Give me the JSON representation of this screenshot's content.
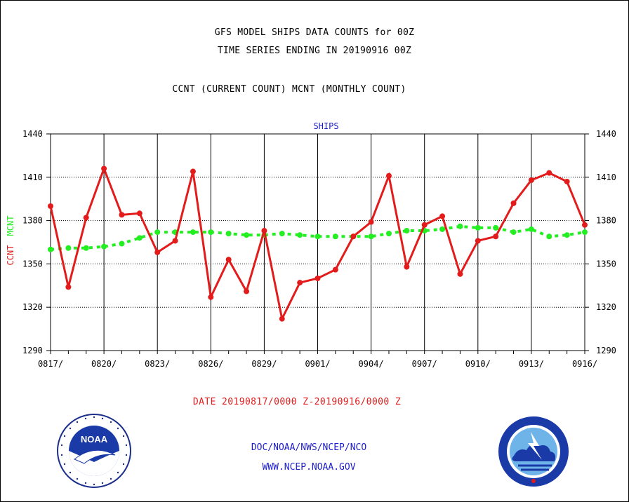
{
  "title_line1": "GFS MODEL SHIPS DATA COUNTS for 00Z",
  "title_line2": "TIME SERIES ENDING IN 20190916 00Z",
  "title_line3": "CCNT (CURRENT COUNT) MCNT (MONTHLY COUNT)",
  "date_range": "DATE 20190817/0000 Z-20190916/0000 Z",
  "footer_line1": "DOC/NOAA/NWS/NCEP/NCO",
  "footer_line2": "WWW.NCEP.NOAA.GOV",
  "logos": {
    "left": {
      "text": "NOAA",
      "ring_text": "NATIONAL OCEANIC AND ATMOSPHERIC ADMINISTRATION · U.S. DEPARTMENT OF COMMERCE"
    },
    "right": {
      "ring_text": "NATIONAL WEATHER SERVICE"
    }
  },
  "colors": {
    "ccnt": "#e31b1b",
    "mcnt": "#22ee22",
    "title_blue": "#1c1ccc",
    "grid": "#000000"
  },
  "chart_data": {
    "type": "line",
    "title": "SHIPS",
    "ylabel_ccnt": "CCNT",
    "ylabel_mcnt": "MCNT",
    "ylim": [
      1290,
      1440
    ],
    "yticks": [
      1290,
      1320,
      1350,
      1380,
      1410,
      1440
    ],
    "xtick_labels": [
      "0817/",
      "0820/",
      "0823/",
      "0826/",
      "0829/",
      "0901/",
      "0904/",
      "0907/",
      "0910/",
      "0913/",
      "0916/"
    ],
    "grid": true,
    "series": [
      {
        "name": "CCNT",
        "values": [
          1390,
          1334,
          1382,
          1416,
          1384,
          1385,
          1358,
          1366,
          1414,
          1327,
          1353,
          1331,
          1373,
          1312,
          1337,
          1340,
          1346,
          1369,
          1379,
          1411,
          1348,
          1377,
          1383,
          1343,
          1366,
          1369,
          1392,
          1408,
          1413,
          1407,
          1377
        ]
      },
      {
        "name": "MCNT",
        "values": [
          1360,
          1361,
          1361,
          1362,
          1364,
          1368,
          1372,
          1372,
          1372,
          1372,
          1371,
          1370,
          1370,
          1371,
          1370,
          1369,
          1369,
          1369,
          1369,
          1371,
          1373,
          1373,
          1374,
          1376,
          1375,
          1375,
          1372,
          1374,
          1369,
          1370,
          1372
        ]
      }
    ]
  }
}
